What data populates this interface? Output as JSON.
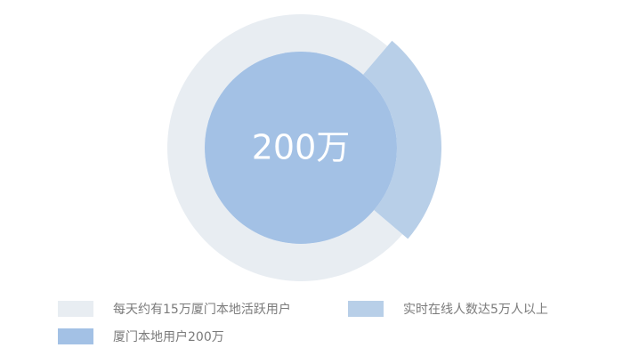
{
  "chart_data": {
    "type": "pie",
    "center_label": "200万",
    "series": [
      {
        "name": "每天约有15万厦门本地活跃用户",
        "values": [
          150000
        ],
        "color": "#e8edf2"
      },
      {
        "name": "实时在线人数达5万人以上",
        "values": [
          50000
        ],
        "color": "#b8cfe8"
      },
      {
        "name": "厦门本地用户200万",
        "values": [
          2000000
        ],
        "color": "#a3c1e5"
      }
    ],
    "legend_position": "bottom"
  }
}
